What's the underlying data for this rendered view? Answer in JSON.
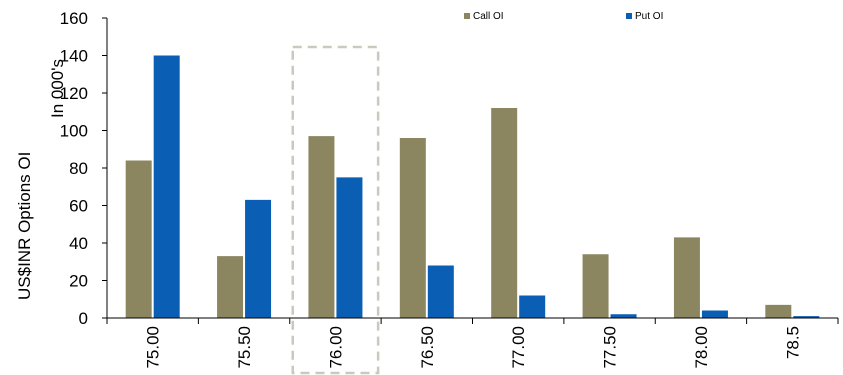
{
  "chart_data": {
    "type": "bar",
    "categories": [
      "75.00",
      "75.50",
      "76.00",
      "76.50",
      "77.00",
      "77.50",
      "78.00",
      "78.5"
    ],
    "series": [
      {
        "name": "Call OI",
        "color": "#8b8660",
        "values": [
          84,
          33,
          97,
          96,
          112,
          34,
          43,
          7
        ]
      },
      {
        "name": "Put OI",
        "color": "#0a5fb4",
        "values": [
          140,
          63,
          75,
          28,
          12,
          2,
          4,
          1
        ]
      }
    ],
    "title": "",
    "xlabel": "",
    "ylabel": "US$INR Options OI",
    "ylabel_secondary": "In 000's",
    "ylim": [
      0,
      160
    ],
    "yticks": [
      0,
      20,
      40,
      60,
      80,
      100,
      120,
      140,
      160
    ],
    "grid": false,
    "legend_position": "top-right",
    "highlight_category": "76.00",
    "highlight_color": "#c9c9bd"
  }
}
